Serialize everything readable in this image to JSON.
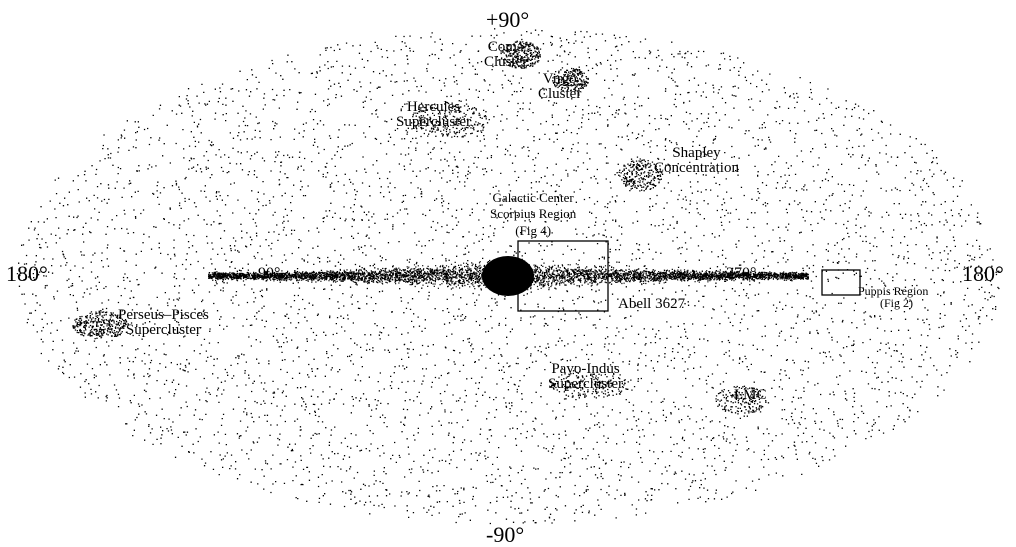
{
  "axes": {
    "top": "+90°",
    "bottom": "-90°",
    "left": "180°",
    "right": "180°",
    "l90": "90°",
    "l270": "270°"
  },
  "labels": {
    "coma": [
      "Coma",
      "Cluster"
    ],
    "virgo": [
      "Virgo",
      "Cluster"
    ],
    "hercules": [
      "Hercules",
      "Supercluster"
    ],
    "shapley": [
      "Shapley",
      "Concentration"
    ],
    "galactic_center": [
      "Galactic Center",
      "Scorpius Region",
      "(Fig 4)"
    ],
    "abell": "Abell 3627",
    "perseus": [
      "Perseus–Pisces",
      "Supercluster"
    ],
    "pavo": [
      "Pavo-Indus",
      "Supercluster"
    ],
    "lmc": "LMC",
    "puppis": [
      "Puppis Region",
      "(Fig 2)"
    ]
  }
}
